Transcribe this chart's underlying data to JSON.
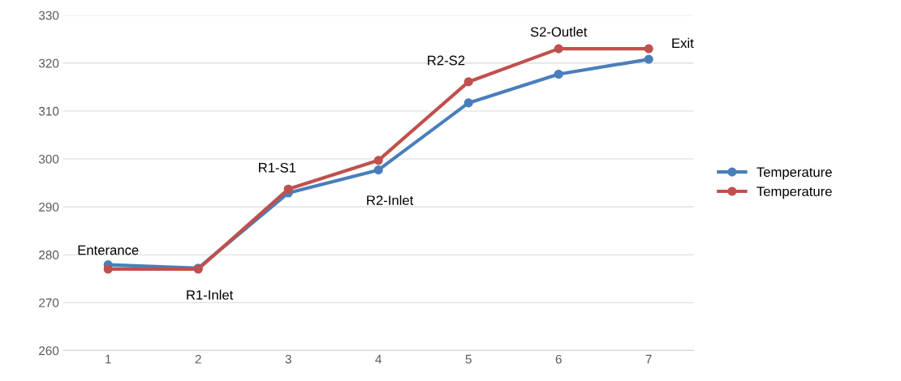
{
  "chart_data": {
    "type": "line",
    "categories": [
      "1",
      "2",
      "3",
      "4",
      "5",
      "6",
      "7"
    ],
    "series": [
      {
        "name": "Temperature",
        "color": "#4a7ebb",
        "values": [
          277.9,
          277.2,
          292.9,
          297.7,
          311.7,
          317.7,
          320.8
        ]
      },
      {
        "name": "Temperature",
        "color": "#c0504d",
        "values": [
          277,
          277,
          293.7,
          299.7,
          316.1,
          323,
          323
        ]
      }
    ],
    "ylim": [
      260,
      330
    ],
    "yticks": [
      260,
      270,
      280,
      290,
      300,
      310,
      320,
      330
    ],
    "grid": "y",
    "legend": "right",
    "marker": "circle",
    "line_style": "solid",
    "annotations": [
      {
        "text": "Enterance",
        "x": "1",
        "y": 277.9
      },
      {
        "text": "R1-Inlet",
        "x": "2",
        "y": 277
      },
      {
        "text": "R1-S1",
        "x": "3",
        "y": 293.7
      },
      {
        "text": "R2-Inlet",
        "x": "4",
        "y": 297.7
      },
      {
        "text": "R2-S2",
        "x": "5",
        "y": 316.1
      },
      {
        "text": "S2-Outlet",
        "x": "6",
        "y": 323
      },
      {
        "text": "Exit",
        "x": "7",
        "y": 323
      }
    ]
  }
}
